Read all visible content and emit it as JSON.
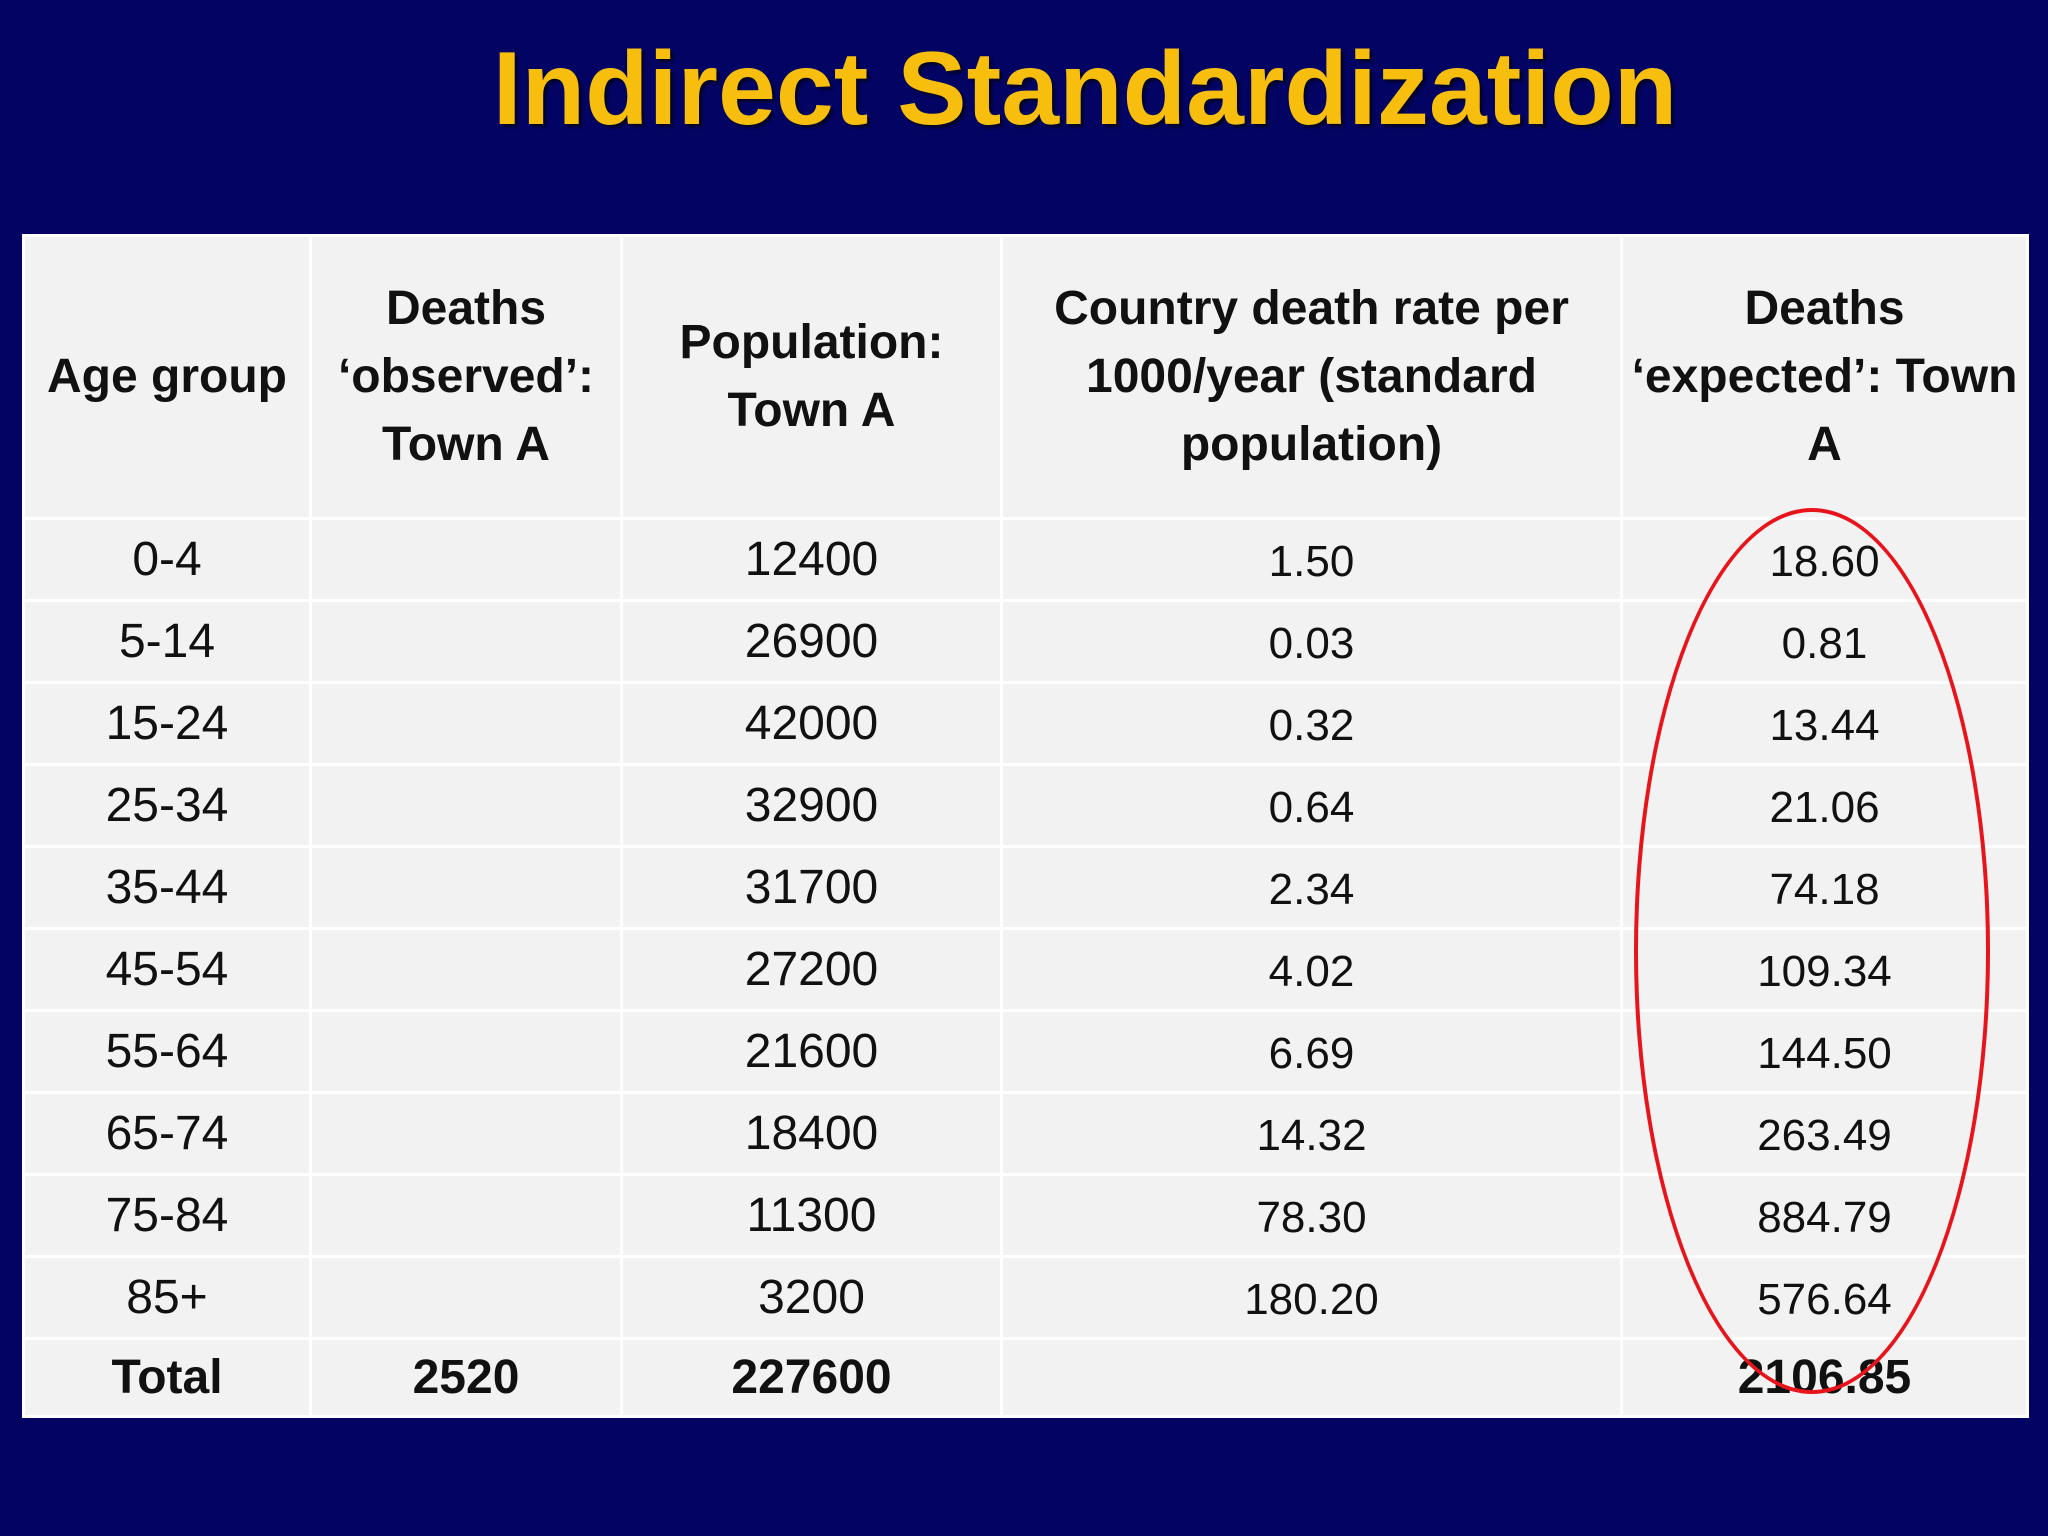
{
  "title": "Indirect Standardization",
  "table": {
    "headers": [
      "Age group",
      "Deaths ‘observed’: Town A",
      "Population: Town A",
      "Country death rate per 1000/year (standard population)",
      "Deaths ‘expected’: Town A"
    ],
    "rows": [
      {
        "age": "0-4",
        "observed": "",
        "population": "12400",
        "rate": "1.50",
        "expected": "18.60"
      },
      {
        "age": "5-14",
        "observed": "",
        "population": "26900",
        "rate": "0.03",
        "expected": "0.81"
      },
      {
        "age": "15-24",
        "observed": "",
        "population": "42000",
        "rate": "0.32",
        "expected": "13.44"
      },
      {
        "age": "25-34",
        "observed": "",
        "population": "32900",
        "rate": "0.64",
        "expected": "21.06"
      },
      {
        "age": "35-44",
        "observed": "",
        "population": "31700",
        "rate": "2.34",
        "expected": "74.18"
      },
      {
        "age": "45-54",
        "observed": "",
        "population": "27200",
        "rate": "4.02",
        "expected": "109.34"
      },
      {
        "age": "55-64",
        "observed": "",
        "population": "21600",
        "rate": "6.69",
        "expected": "144.50"
      },
      {
        "age": "65-74",
        "observed": "",
        "population": "18400",
        "rate": "14.32",
        "expected": "263.49"
      },
      {
        "age": "75-84",
        "observed": "",
        "population": "11300",
        "rate": "78.30",
        "expected": "884.79"
      },
      {
        "age": "85+",
        "observed": "",
        "population": "3200",
        "rate": "180.20",
        "expected": "576.64"
      }
    ],
    "total": {
      "age": "Total",
      "observed": "2520",
      "population": "227600",
      "rate": "",
      "expected": "2106.85"
    }
  },
  "colors": {
    "background": "#030363",
    "title": "#F7BE0D",
    "highlight_ellipse": "#E8141B",
    "table_fill": "#F2F2F2"
  }
}
